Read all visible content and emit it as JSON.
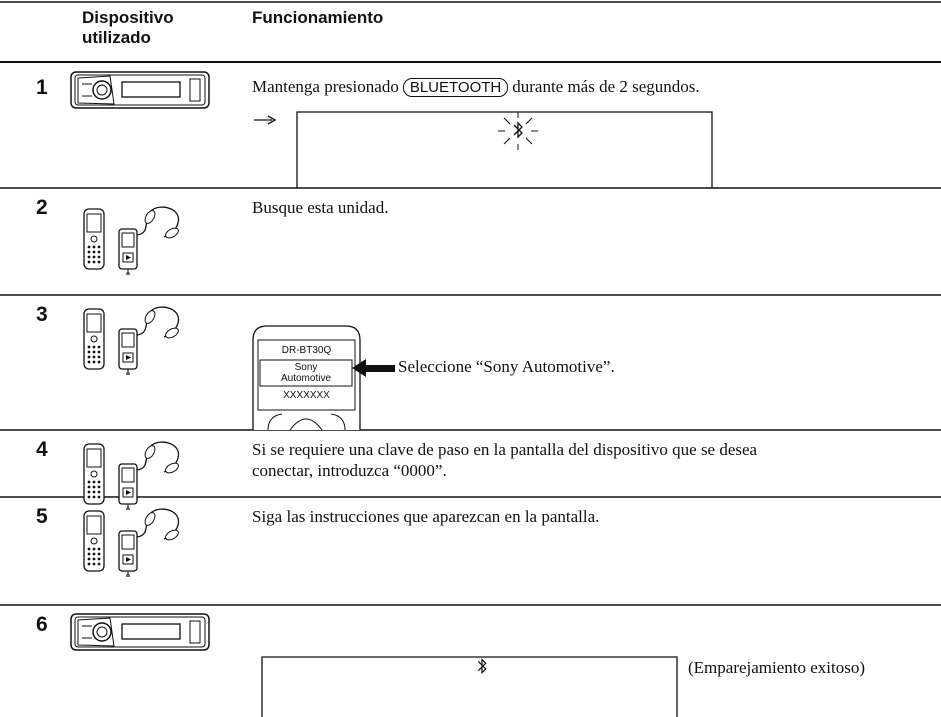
{
  "header": {
    "device": "Dispositivo utilizado",
    "operation": "Funcionamiento"
  },
  "steps": [
    {
      "number": "1",
      "text_before": "Mantenga presionado",
      "button": "BLUETOOTH",
      "text_after": "durante más de 2 segundos."
    },
    {
      "number": "2",
      "text": "Busque esta unidad."
    },
    {
      "number": "3",
      "screen": [
        "DR-BT30Q",
        "Sony Automotive",
        "XXXXXXX"
      ],
      "text": "Seleccione “Sony Automotive”."
    },
    {
      "number": "4",
      "text": "Si se requiere una clave de paso en la pantalla del dispositivo que se desea conectar, introduzca “0000”."
    },
    {
      "number": "5",
      "text": "Siga las instrucciones que aparezcan en la pantalla."
    },
    {
      "number": "6",
      "note": "(Emparejamiento exitoso)"
    }
  ]
}
